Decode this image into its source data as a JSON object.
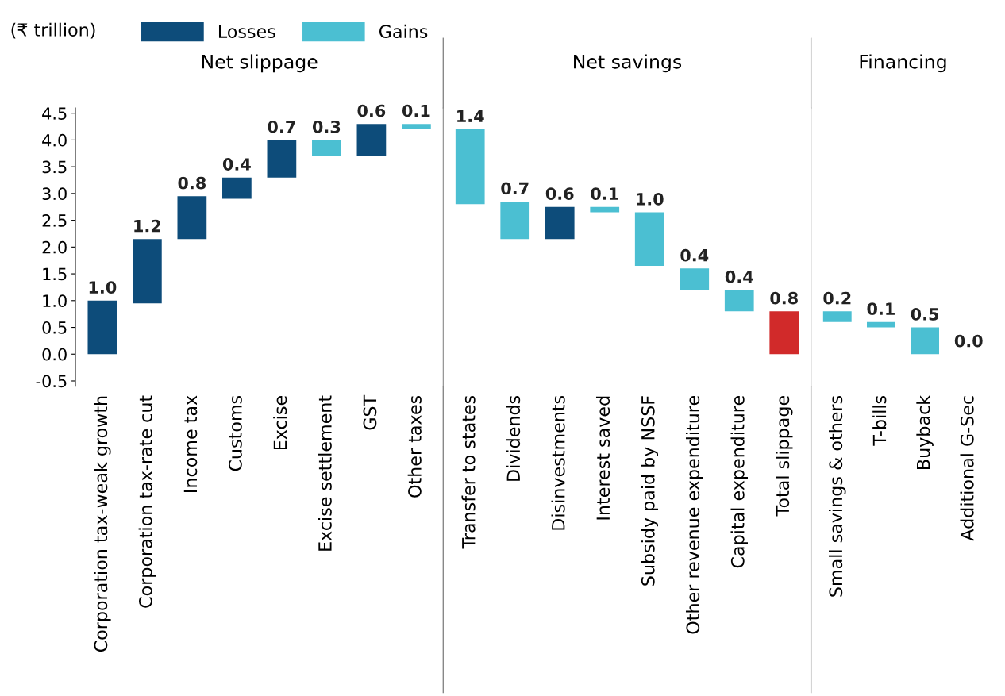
{
  "chart_data": [
    {
      "type": "bar",
      "title": "Net slippage",
      "ylabel": "(₹ trillion)",
      "legend": "top",
      "categories": [
        "Corporation tax-weak growth",
        "Corporation tax-rate cut",
        "Income tax",
        "Customs",
        "Excise",
        "Excise settlement",
        "GST",
        "Other taxes"
      ],
      "series": [
        {
          "name": "Losses",
          "color": "#0d4c7a",
          "values": [
            1.0,
            1.2,
            0.8,
            0.4,
            0.7,
            null,
            0.6,
            null
          ],
          "base": [
            0,
            0.95,
            2.15,
            2.9,
            3.3,
            null,
            3.7,
            null
          ],
          "value_labels": [
            "1.0",
            "1.2",
            "0.8",
            "0.4",
            "0.7",
            null,
            "0.6",
            null
          ]
        },
        {
          "name": "Gains",
          "color": "#4bbfd2",
          "values": [
            null,
            null,
            null,
            null,
            null,
            0.3,
            null,
            0.1
          ],
          "base": [
            null,
            null,
            null,
            null,
            null,
            3.7,
            null,
            4.2
          ],
          "value_labels": [
            null,
            null,
            null,
            null,
            null,
            "0.3",
            null,
            "0.1"
          ]
        }
      ],
      "ylim": [
        -0.6,
        4.6
      ],
      "yticks": [
        {
          "value": -0.5,
          "label": "-0.5"
        },
        {
          "value": 0,
          "label": "0.0"
        },
        {
          "value": 0.5,
          "label": "0.5"
        },
        {
          "value": 1,
          "label": "1.0"
        },
        {
          "value": 1.5,
          "label": "1.5"
        },
        {
          "value": 2,
          "label": "2.0"
        },
        {
          "value": 2.5,
          "label": "2.5"
        },
        {
          "value": 3,
          "label": "3.0"
        },
        {
          "value": 3.5,
          "label": "3.5"
        },
        {
          "value": 4,
          "label": "4.0"
        },
        {
          "value": 4.5,
          "label": "4.5"
        }
      ]
    },
    {
      "type": "bar",
      "title": "Net savings",
      "tick_labels": "x",
      "categories": [
        "Transfer to states",
        "Dividends",
        "Disinvestments",
        "Interest saved",
        "Subsidy paid by NSSF",
        "Other revenue expenditure",
        "Capital expenditure",
        "Total slippage"
      ],
      "series": [
        {
          "color": "#0d4c7a",
          "values": [
            null,
            null,
            0.6,
            null,
            null,
            null,
            null,
            null
          ],
          "base": [
            null,
            null,
            2.15,
            null,
            null,
            null,
            null,
            null
          ],
          "value_labels": [
            null,
            null,
            "0.6",
            null,
            null,
            null,
            null,
            null
          ]
        },
        {
          "color": "#4bbfd2",
          "values": [
            1.4,
            0.7,
            null,
            0.1,
            1.0,
            0.4,
            0.4,
            null
          ],
          "base": [
            2.8,
            2.15,
            null,
            2.65,
            1.65,
            1.2,
            0.8,
            null
          ],
          "value_labels": [
            "1.4",
            "0.7",
            null,
            "0.1",
            "1.0",
            "0.4",
            "0.4",
            null
          ]
        },
        {
          "color": "#d12a2a",
          "values": [
            null,
            null,
            null,
            null,
            null,
            null,
            null,
            0.8
          ],
          "base": [
            null,
            null,
            null,
            null,
            null,
            null,
            null,
            0
          ],
          "value_labels": [
            null,
            null,
            null,
            null,
            null,
            null,
            null,
            "0.8"
          ]
        }
      ],
      "ylim": [
        -0.6,
        4.6
      ]
    },
    {
      "type": "bar",
      "title": "Financing",
      "tick_labels": "x",
      "categories": [
        "Small savings & others",
        "T-bills",
        "Buyback",
        "Additional G-Sec"
      ],
      "series": [
        {
          "color": "#4bbfd2",
          "values": [
            0.2,
            0.1,
            0.5,
            0.0
          ],
          "base": [
            0.6,
            0.5,
            0,
            null
          ],
          "value_labels": [
            "0.2",
            "0.1",
            "0.5",
            "0.0"
          ]
        }
      ],
      "ylim": [
        -0.6,
        4.6
      ]
    }
  ]
}
